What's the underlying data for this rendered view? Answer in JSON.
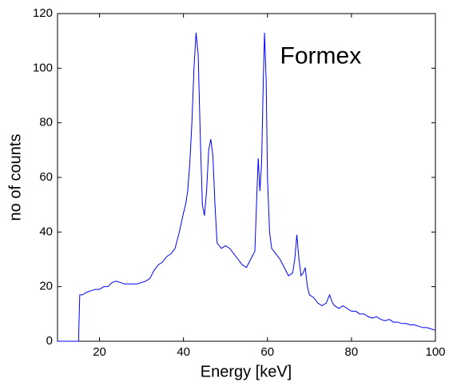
{
  "chart_data": {
    "type": "line",
    "xlabel": "Energy [keV]",
    "ylabel": "no of counts",
    "annotation": "Formex",
    "annotation_x": 63,
    "annotation_y": 104,
    "xlim": [
      10,
      100
    ],
    "ylim": [
      0,
      120
    ],
    "xticks": [
      20,
      40,
      60,
      80,
      100
    ],
    "yticks": [
      0,
      20,
      40,
      60,
      80,
      100,
      120
    ],
    "grid": false,
    "series": [
      {
        "name": "Formex",
        "color": "#0000ff",
        "x": [
          10,
          15,
          15.3,
          16,
          17,
          18,
          19,
          20,
          21,
          22,
          23,
          24,
          25,
          26,
          27,
          28,
          29,
          30,
          31,
          32,
          33,
          34,
          35,
          36,
          37,
          38,
          39,
          40,
          40.5,
          41,
          41.5,
          42,
          42.5,
          43,
          43.5,
          44,
          44.5,
          45,
          45.5,
          46,
          46.5,
          47,
          47.5,
          48,
          49,
          50,
          51,
          52,
          53,
          54,
          55,
          56,
          57,
          57.5,
          57.8,
          58.2,
          58.6,
          59,
          59.3,
          59.7,
          60,
          60.5,
          61,
          62,
          63,
          64,
          65,
          66,
          66.5,
          67,
          67.5,
          68,
          68.5,
          69,
          69.5,
          70,
          71,
          72,
          73,
          74,
          74.8,
          75.5,
          76,
          77,
          78,
          79,
          80,
          81,
          82,
          83,
          84,
          85,
          86,
          87,
          88,
          89,
          90,
          91,
          92,
          93,
          94,
          95,
          96,
          97,
          98,
          99,
          100
        ],
        "values": [
          0,
          0,
          17,
          17,
          18,
          18.5,
          19,
          19,
          20,
          20,
          21.5,
          22,
          21.5,
          21,
          21,
          21,
          21,
          21.5,
          22,
          23,
          26,
          28,
          29,
          31,
          32,
          34,
          40,
          47,
          50,
          55,
          65,
          80,
          100,
          113,
          105,
          75,
          50,
          46,
          55,
          70,
          74,
          68,
          50,
          36,
          34,
          35,
          34,
          32,
          30,
          28,
          27,
          30,
          33,
          55,
          67,
          55,
          65,
          95,
          113,
          95,
          60,
          40,
          34,
          32,
          30,
          27,
          24,
          25,
          30,
          39,
          30,
          24,
          25,
          27,
          20,
          17,
          16,
          14,
          13,
          14,
          17,
          14,
          13,
          12,
          13,
          12,
          11,
          11,
          10,
          10,
          9,
          8.5,
          9,
          8,
          7.5,
          8,
          7,
          7,
          6.5,
          6.5,
          6,
          6,
          5.5,
          5,
          5,
          4.5,
          4
        ]
      }
    ]
  }
}
